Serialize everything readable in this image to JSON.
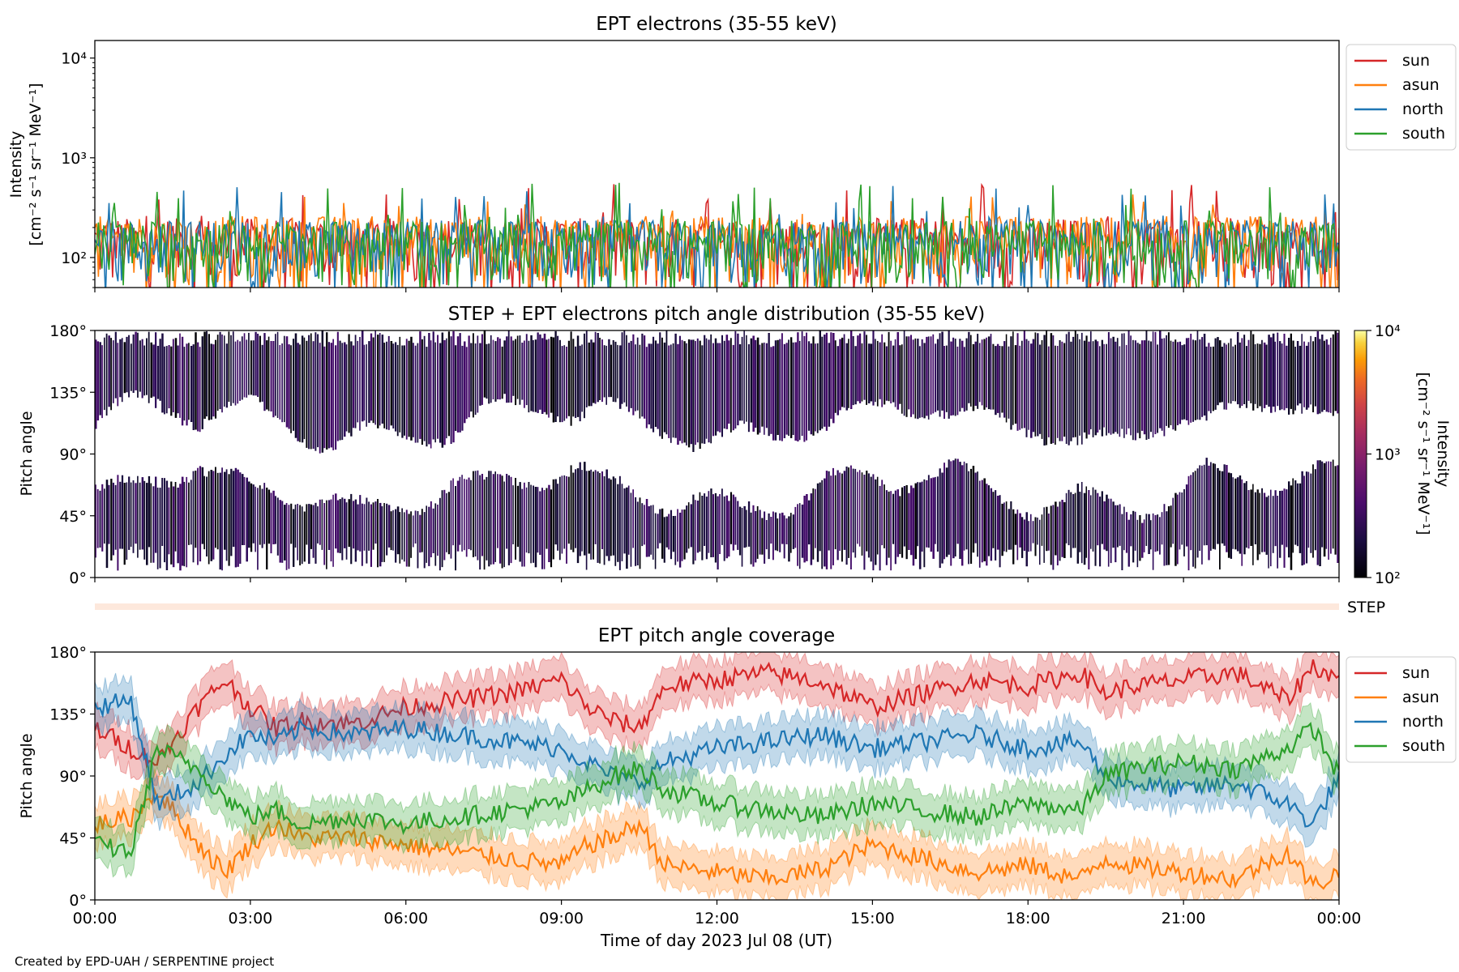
{
  "credit": "Created by EPD-UAH / SERPENTINE project",
  "colors": {
    "sun": "#d62728",
    "asun": "#ff7f0e",
    "north": "#1f77b4",
    "south": "#2ca02c",
    "step_bar": "#fde8dc"
  },
  "chart_data": [
    {
      "id": "intensity",
      "type": "line",
      "title": "EPT electrons (35-55 keV)",
      "ylabel": [
        "Intensity",
        "[cm⁻² s⁻¹ sr⁻¹ MeV⁻¹]"
      ],
      "yscale": "log",
      "ylim": [
        50,
        15000
      ],
      "yticks": [
        {
          "value": 100,
          "label": "10²"
        },
        {
          "value": 1000,
          "label": "10³"
        },
        {
          "value": 10000,
          "label": "10⁴"
        }
      ],
      "xlim_hours": [
        0,
        24
      ],
      "legend_placement": "outside-right-top",
      "series": [
        {
          "name": "sun",
          "color_key": "sun",
          "typical": 160,
          "spike_max": 560
        },
        {
          "name": "asun",
          "color_key": "asun",
          "typical": 170,
          "spike_max": 440
        },
        {
          "name": "north",
          "color_key": "north",
          "typical": 150,
          "spike_max": 540
        },
        {
          "name": "south",
          "color_key": "south",
          "typical": 150,
          "spike_max": 560
        }
      ]
    },
    {
      "id": "pad",
      "type": "heatmap",
      "title": "STEP + EPT electrons pitch angle distribution (35-55 keV)",
      "ylabel": "Pitch angle",
      "ylim": [
        0,
        180
      ],
      "yticks": [
        {
          "value": 0,
          "label": "0°"
        },
        {
          "value": 45,
          "label": "45°"
        },
        {
          "value": 90,
          "label": "90°"
        },
        {
          "value": 135,
          "label": "135°"
        },
        {
          "value": 180,
          "label": "180°"
        }
      ],
      "colorbar": {
        "label": [
          "Intensity",
          "[cm⁻² s⁻¹ sr⁻¹ MeV⁻¹]"
        ],
        "scale": "log",
        "range": [
          100,
          10000
        ],
        "ticks": [
          {
            "value": 100,
            "label": "10²"
          },
          {
            "value": 1000,
            "label": "10³"
          },
          {
            "value": 10000,
            "label": "10⁴"
          }
        ],
        "colormap": "inferno"
      },
      "step_label": "STEP"
    },
    {
      "id": "coverage",
      "type": "line",
      "title": "EPT pitch angle coverage",
      "ylabel": "Pitch angle",
      "xlabel": "Time of day 2023 Jul 08 (UT)",
      "ylim": [
        0,
        180
      ],
      "yticks": [
        {
          "value": 0,
          "label": "0°"
        },
        {
          "value": 45,
          "label": "45°"
        },
        {
          "value": 90,
          "label": "90°"
        },
        {
          "value": 135,
          "label": "135°"
        },
        {
          "value": 180,
          "label": "180°"
        }
      ],
      "xticks": [
        {
          "value": 0,
          "label": "00:00"
        },
        {
          "value": 3,
          "label": "03:00"
        },
        {
          "value": 6,
          "label": "06:00"
        },
        {
          "value": 9,
          "label": "09:00"
        },
        {
          "value": 12,
          "label": "12:00"
        },
        {
          "value": 15,
          "label": "15:00"
        },
        {
          "value": 18,
          "label": "18:00"
        },
        {
          "value": 21,
          "label": "21:00"
        },
        {
          "value": 24,
          "label": "00:00"
        }
      ],
      "legend_placement": "outside-right-top",
      "band_halfwidth_deg": 15,
      "series": [
        {
          "name": "sun",
          "color_key": "sun",
          "points": [
            [
              0,
              125
            ],
            [
              0.7,
              110
            ],
            [
              1.2,
              100
            ],
            [
              2,
              140
            ],
            [
              2.5,
              160
            ],
            [
              3,
              140
            ],
            [
              3.5,
              125
            ],
            [
              4,
              130
            ],
            [
              5,
              128
            ],
            [
              6,
              140
            ],
            [
              7,
              145
            ],
            [
              8,
              150
            ],
            [
              9,
              160
            ],
            [
              9.5,
              140
            ],
            [
              10,
              130
            ],
            [
              10.5,
              125
            ],
            [
              11,
              155
            ],
            [
              12,
              160
            ],
            [
              13,
              165
            ],
            [
              14,
              158
            ],
            [
              15,
              140
            ],
            [
              16,
              150
            ],
            [
              17,
              160
            ],
            [
              18,
              155
            ],
            [
              19,
              165
            ],
            [
              19.5,
              150
            ],
            [
              20,
              155
            ],
            [
              21,
              160
            ],
            [
              22,
              165
            ],
            [
              23,
              145
            ],
            [
              23.5,
              170
            ],
            [
              24,
              160
            ]
          ]
        },
        {
          "name": "asun",
          "color_key": "asun",
          "points": [
            [
              0,
              55
            ],
            [
              0.7,
              60
            ],
            [
              1.2,
              80
            ],
            [
              2,
              40
            ],
            [
              2.5,
              20
            ],
            [
              3,
              40
            ],
            [
              3.5,
              55
            ],
            [
              4,
              45
            ],
            [
              5,
              45
            ],
            [
              6,
              40
            ],
            [
              7,
              35
            ],
            [
              8,
              30
            ],
            [
              9,
              25
            ],
            [
              9.5,
              40
            ],
            [
              10,
              45
            ],
            [
              10.5,
              55
            ],
            [
              11,
              25
            ],
            [
              12,
              20
            ],
            [
              13,
              15
            ],
            [
              14,
              22
            ],
            [
              15,
              40
            ],
            [
              16,
              30
            ],
            [
              17,
              20
            ],
            [
              18,
              25
            ],
            [
              19,
              15
            ],
            [
              19.5,
              30
            ],
            [
              20,
              25
            ],
            [
              21,
              20
            ],
            [
              22,
              15
            ],
            [
              23,
              35
            ],
            [
              23.5,
              10
            ],
            [
              24,
              20
            ]
          ]
        },
        {
          "name": "north",
          "color_key": "north",
          "points": [
            [
              0,
              140
            ],
            [
              0.7,
              145
            ],
            [
              1.2,
              70
            ],
            [
              2,
              85
            ],
            [
              2.5,
              105
            ],
            [
              3,
              120
            ],
            [
              3.5,
              115
            ],
            [
              4,
              125
            ],
            [
              5,
              120
            ],
            [
              6,
              125
            ],
            [
              7,
              120
            ],
            [
              8,
              115
            ],
            [
              9,
              110
            ],
            [
              9.5,
              100
            ],
            [
              10,
              90
            ],
            [
              10.5,
              85
            ],
            [
              11,
              100
            ],
            [
              12,
              110
            ],
            [
              13,
              115
            ],
            [
              14,
              120
            ],
            [
              15,
              110
            ],
            [
              16,
              115
            ],
            [
              17,
              120
            ],
            [
              18,
              110
            ],
            [
              19,
              115
            ],
            [
              19.5,
              90
            ],
            [
              20,
              85
            ],
            [
              21,
              80
            ],
            [
              22,
              85
            ],
            [
              23,
              70
            ],
            [
              23.5,
              55
            ],
            [
              24,
              90
            ]
          ]
        },
        {
          "name": "south",
          "color_key": "south",
          "points": [
            [
              0,
              40
            ],
            [
              0.7,
              35
            ],
            [
              1.2,
              110
            ],
            [
              2,
              95
            ],
            [
              2.5,
              75
            ],
            [
              3,
              60
            ],
            [
              3.5,
              65
            ],
            [
              4,
              55
            ],
            [
              5,
              60
            ],
            [
              6,
              55
            ],
            [
              7,
              60
            ],
            [
              8,
              65
            ],
            [
              9,
              70
            ],
            [
              9.5,
              80
            ],
            [
              10,
              90
            ],
            [
              10.5,
              95
            ],
            [
              11,
              80
            ],
            [
              12,
              70
            ],
            [
              13,
              65
            ],
            [
              14,
              60
            ],
            [
              15,
              70
            ],
            [
              16,
              65
            ],
            [
              17,
              60
            ],
            [
              18,
              70
            ],
            [
              19,
              65
            ],
            [
              19.5,
              90
            ],
            [
              20,
              95
            ],
            [
              21,
              100
            ],
            [
              22,
              95
            ],
            [
              23,
              110
            ],
            [
              23.5,
              125
            ],
            [
              24,
              90
            ]
          ]
        }
      ]
    }
  ]
}
